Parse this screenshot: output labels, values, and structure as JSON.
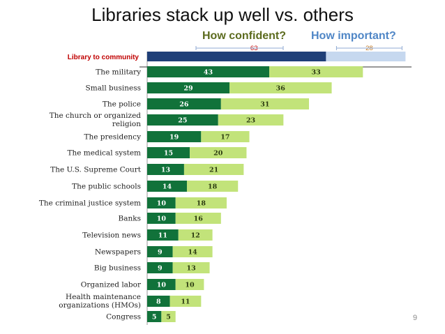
{
  "slide": {
    "title": "Libraries stack up well vs. others",
    "page_number": "9"
  },
  "legend": {
    "confident": "How confident?",
    "important": "How important?"
  },
  "colors": {
    "confident_bar": "#11723a",
    "important_bar": "#c2e37a",
    "library_confident": "#1f3f78",
    "library_important": "#c6d8ef",
    "library_label": "#c00000",
    "confident_value": "#ffffff",
    "important_value": "#2b3a10",
    "library_confident_value": "#c00000",
    "library_important_value": "#c07a2a"
  },
  "chart_data": {
    "type": "bar",
    "orientation": "horizontal",
    "stacked": true,
    "title": "Libraries stack up well vs. others",
    "highlight": {
      "category": "Library to community",
      "values": [
        63,
        28
      ]
    },
    "categories": [
      "The military",
      "Small business",
      "The police",
      [
        "The church or organized",
        "religion"
      ],
      "The presidency",
      "The medical system",
      "The U.S. Supreme Court",
      "The public schools",
      "The criminal justice system",
      "Banks",
      "Television news",
      "Newspapers",
      "Big business",
      "Organized labor",
      [
        "Health maintenance",
        "organizations (HMOs)"
      ],
      "Congress"
    ],
    "series": [
      {
        "name": "How confident?",
        "values": [
          43,
          29,
          26,
          25,
          19,
          15,
          13,
          14,
          10,
          10,
          11,
          9,
          9,
          10,
          8,
          5
        ]
      },
      {
        "name": "How important?",
        "values": [
          33,
          36,
          31,
          23,
          17,
          20,
          21,
          18,
          18,
          16,
          12,
          14,
          13,
          10,
          11,
          5
        ]
      }
    ]
  }
}
